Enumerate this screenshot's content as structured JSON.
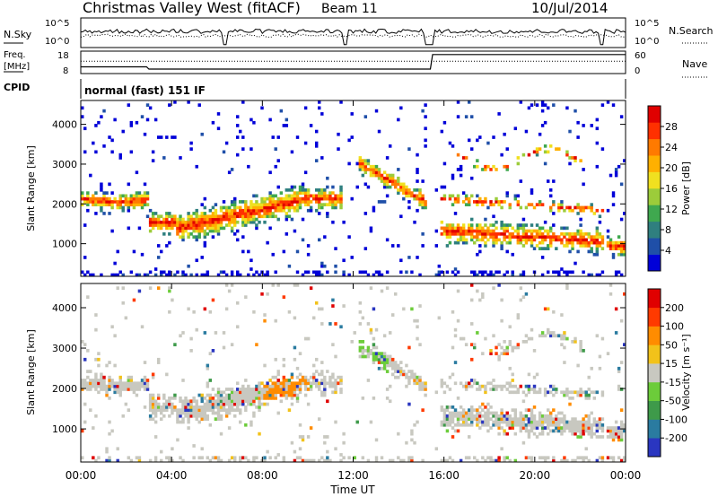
{
  "header": {
    "title": "Christmas Valley West (fitACF)",
    "beam": "Beam 11",
    "date": "10/Jul/2014"
  },
  "top_panels": {
    "nsky_label": "N.Sky",
    "nsearch_label": "N.Search",
    "nsky_ticks": [
      "10^5",
      "10^0"
    ],
    "nsearch_ticks": [
      "10^5",
      "10^0"
    ],
    "freq_label_1": "Freq.",
    "freq_label_2": "[MHz]",
    "freq_ticks": [
      "18",
      "8"
    ],
    "nave_label": "Nave",
    "nave_ticks": [
      "60",
      "0"
    ],
    "cpid_label": "CPID",
    "cpid_text": "normal (fast) 151 IF"
  },
  "chart_data": [
    {
      "type": "heatmap",
      "name": "power-panel",
      "ylabel": "Slant Range [km]",
      "ylim": [
        180,
        4600
      ],
      "yticks": [
        "1000",
        "2000",
        "3000",
        "4000"
      ],
      "xlim_hours": [
        0,
        24
      ],
      "colorbar": {
        "label": "Power [dB]",
        "ticks": [
          "28",
          "24",
          "20",
          "16",
          "12",
          "8",
          "4"
        ],
        "colors": [
          "#0000d8",
          "#1f4fa8",
          "#2f7f7f",
          "#3fa84f",
          "#9ccc3a",
          "#f0e020",
          "#ffb000",
          "#ff7a00",
          "#ff3000",
          "#e00000"
        ]
      }
    },
    {
      "type": "heatmap",
      "name": "velocity-panel",
      "ylabel": "Slant Range [km]",
      "ylim": [
        180,
        4600
      ],
      "yticks": [
        "1000",
        "2000",
        "3000",
        "4000"
      ],
      "xlim_hours": [
        0,
        24
      ],
      "colorbar": {
        "label": "Velocity [m s⁻¹]",
        "ticks": [
          "200",
          "100",
          "50",
          "15",
          "-15",
          "-50",
          "-100",
          "-200"
        ],
        "colors": [
          "#2a36c0",
          "#2a7ba0",
          "#3e9a4a",
          "#6ccc3a",
          "#c8c8c0",
          "#f2c21a",
          "#ff8c00",
          "#ff3a00",
          "#e00000"
        ]
      }
    }
  ],
  "x_axis": {
    "ticks": [
      "00:00",
      "04:00",
      "08:00",
      "12:00",
      "16:00",
      "20:00",
      "00:00"
    ],
    "label": "Time UT"
  }
}
